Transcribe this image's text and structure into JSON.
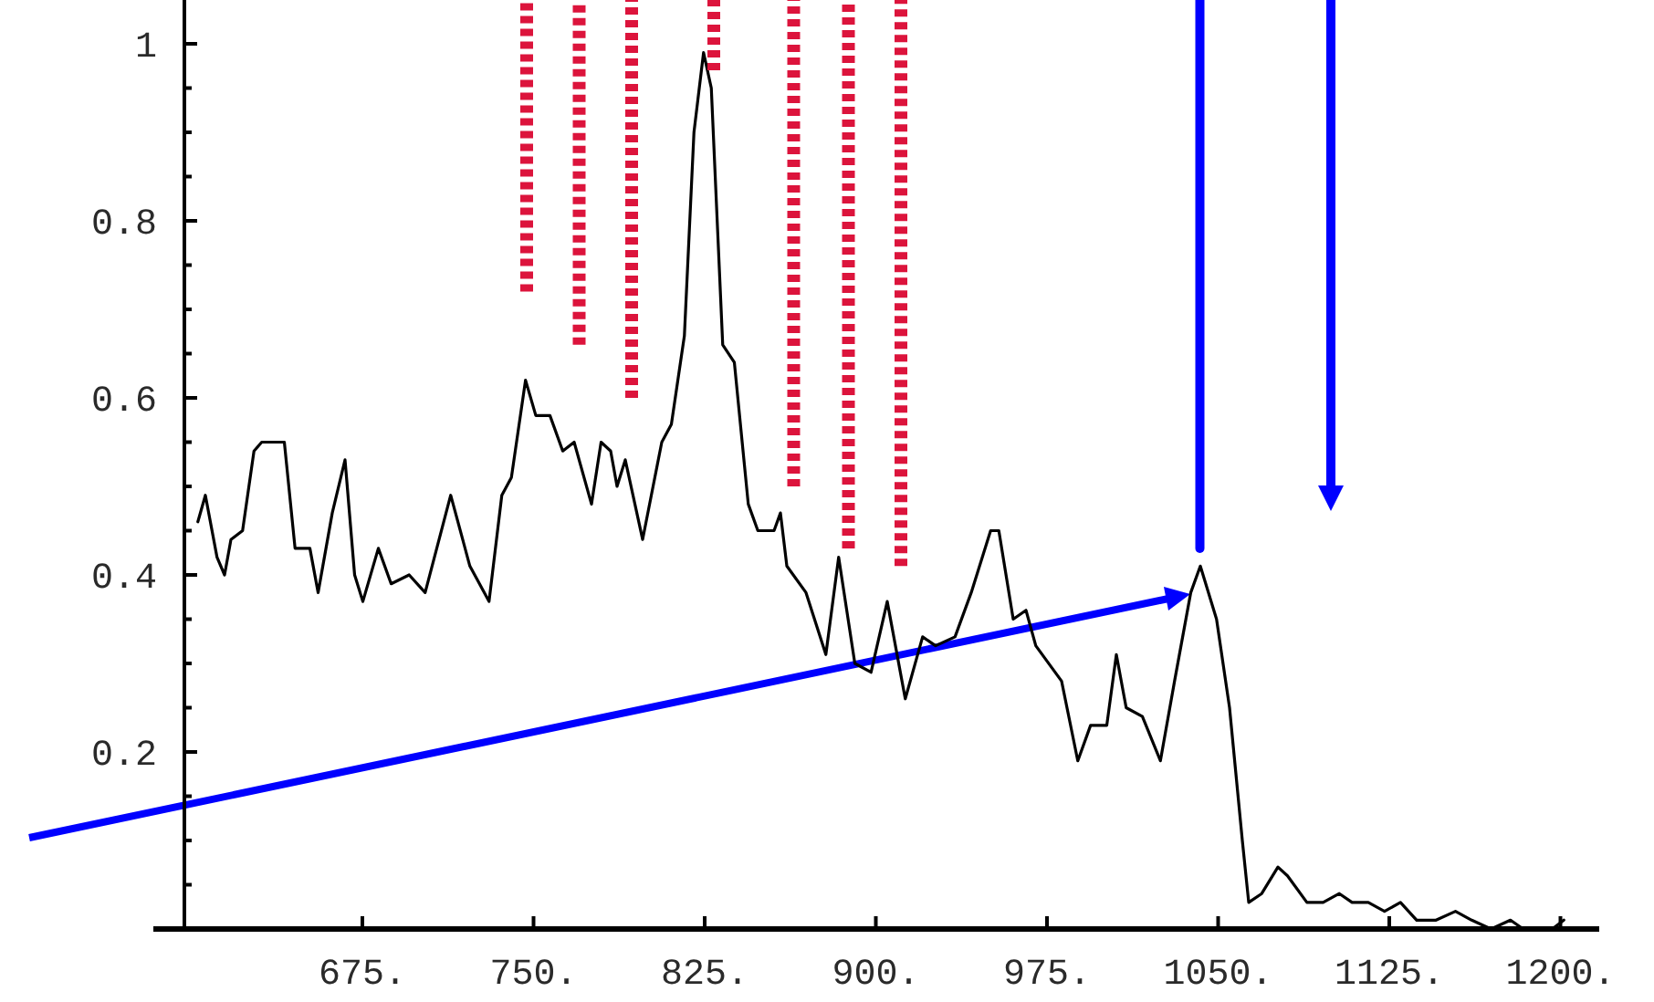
{
  "chart_data": {
    "type": "line",
    "x": [
      602.9,
      606.2,
      611.3,
      614.6,
      617.4,
      622.5,
      627.5,
      630.9,
      640.8,
      645.5,
      652.0,
      655.6,
      661.8,
      667.4,
      671.6,
      675.2,
      682.0,
      687.6,
      695.5,
      702.5,
      713.7,
      722.1,
      730.5,
      736.1,
      740.3,
      746.5,
      751.0,
      757.2,
      762.8,
      767.8,
      775.4,
      779.6,
      783.8,
      786.6,
      790.2,
      797.8,
      806.2,
      810.4,
      816.1,
      820.3,
      824.5,
      827.9,
      832.9,
      838.0,
      844.1,
      848.3,
      855.4,
      858.2,
      861.0,
      869.4,
      878.1,
      883.7,
      890.8,
      897.9,
      905.0,
      912.9,
      920.5,
      926.2,
      934.7,
      941.8,
      950.3,
      953.9,
      960.2,
      965.8,
      970.1,
      981.4,
      988.5,
      994.1,
      1001.2,
      1005.4,
      1009.7,
      1016.8,
      1024.7,
      1030.9,
      1038.0,
      1042.2,
      1049.3,
      1055.0,
      1060.6,
      1063.4,
      1069.1,
      1076.2,
      1080.4,
      1088.9,
      1096.0,
      1103.1,
      1108.7,
      1115.8,
      1122.9,
      1129.9,
      1137.0,
      1145.5,
      1154.0,
      1161.1,
      1169.6,
      1178.1,
      1183.7,
      1190.8,
      1196.4,
      1201.5
    ],
    "series": [
      {
        "color": "#000000",
        "values": [
          0.46,
          0.49,
          0.42,
          0.4,
          0.44,
          0.45,
          0.54,
          0.55,
          0.55,
          0.43,
          0.43,
          0.38,
          0.47,
          0.53,
          0.4,
          0.37,
          0.43,
          0.39,
          0.4,
          0.38,
          0.49,
          0.41,
          0.37,
          0.49,
          0.51,
          0.62,
          0.58,
          0.58,
          0.54,
          0.55,
          0.48,
          0.55,
          0.54,
          0.5,
          0.53,
          0.44,
          0.55,
          0.57,
          0.67,
          0.9,
          0.99,
          0.95,
          0.66,
          0.64,
          0.48,
          0.45,
          0.45,
          0.47,
          0.41,
          0.38,
          0.31,
          0.42,
          0.3,
          0.29,
          0.37,
          0.26,
          0.33,
          0.32,
          0.33,
          0.38,
          0.45,
          0.45,
          0.35,
          0.36,
          0.32,
          0.28,
          0.19,
          0.23,
          0.23,
          0.31,
          0.25,
          0.24,
          0.19,
          0.28,
          0.38,
          0.41,
          0.35,
          0.25,
          0.1,
          0.03,
          0.04,
          0.07,
          0.06,
          0.03,
          0.03,
          0.04,
          0.03,
          0.03,
          0.02,
          0.03,
          0.01,
          0.01,
          0.02,
          0.01,
          0.0,
          0.01,
          0.0,
          0.0,
          0.0,
          0.01
        ]
      },
      {
        "color": "#dc143c",
        "line_style": "dotted",
        "x": [
          747,
          747
        ],
        "values": [
          0.72,
          1.05
        ]
      },
      {
        "color": "#dc143c",
        "line_style": "dotted",
        "x": [
          770,
          770
        ],
        "values": [
          0.66,
          1.05
        ]
      },
      {
        "color": "#dc143c",
        "line_style": "dotted",
        "x": [
          793,
          793
        ],
        "values": [
          0.6,
          1.05
        ]
      },
      {
        "color": "#dc143c",
        "line_style": "dotted",
        "x": [
          829,
          829
        ],
        "values": [
          0.97,
          1.05
        ]
      },
      {
        "color": "#dc143c",
        "line_style": "dotted",
        "x": [
          864,
          864
        ],
        "values": [
          0.5,
          1.05
        ]
      },
      {
        "color": "#dc143c",
        "line_style": "dotted",
        "x": [
          888,
          888
        ],
        "values": [
          0.43,
          1.05
        ]
      },
      {
        "color": "#dc143c",
        "line_style": "dotted",
        "x": [
          911,
          911
        ],
        "values": [
          0.41,
          1.05
        ]
      },
      {
        "color": "#0000ff",
        "line_style": "solid",
        "x": [
          1042,
          1042
        ],
        "values": [
          0.43,
          1.05
        ]
      }
    ],
    "xlim": [
      597,
      1217
    ],
    "ylim": [
      0,
      1.05
    ],
    "xticks": [
      {
        "value": 675,
        "label": "675."
      },
      {
        "value": 750,
        "label": "750."
      },
      {
        "value": 825,
        "label": "825."
      },
      {
        "value": 900,
        "label": "900."
      },
      {
        "value": 975,
        "label": "975."
      },
      {
        "value": 1050,
        "label": "1050."
      },
      {
        "value": 1125,
        "label": "1125."
      },
      {
        "value": 1200,
        "label": "1200."
      }
    ],
    "yticks": [
      {
        "value": 0.05,
        "label": null
      },
      {
        "value": 0.1,
        "label": null
      },
      {
        "value": 0.15,
        "label": null
      },
      0.2,
      {
        "value": 0.25,
        "label": null
      },
      {
        "value": 0.3,
        "label": null
      },
      {
        "value": 0.35,
        "label": null
      },
      0.4,
      {
        "value": 0.45,
        "label": null
      },
      {
        "value": 0.5,
        "label": null
      },
      {
        "value": 0.55,
        "label": null
      },
      0.6,
      {
        "value": 0.65,
        "label": null
      },
      {
        "value": 0.7,
        "label": null
      },
      {
        "value": 0.75,
        "label": null
      },
      0.8,
      {
        "value": 0.85,
        "label": null
      },
      {
        "value": 0.9,
        "label": null
      },
      {
        "value": 0.95,
        "label": null
      },
      1
    ]
  }
}
